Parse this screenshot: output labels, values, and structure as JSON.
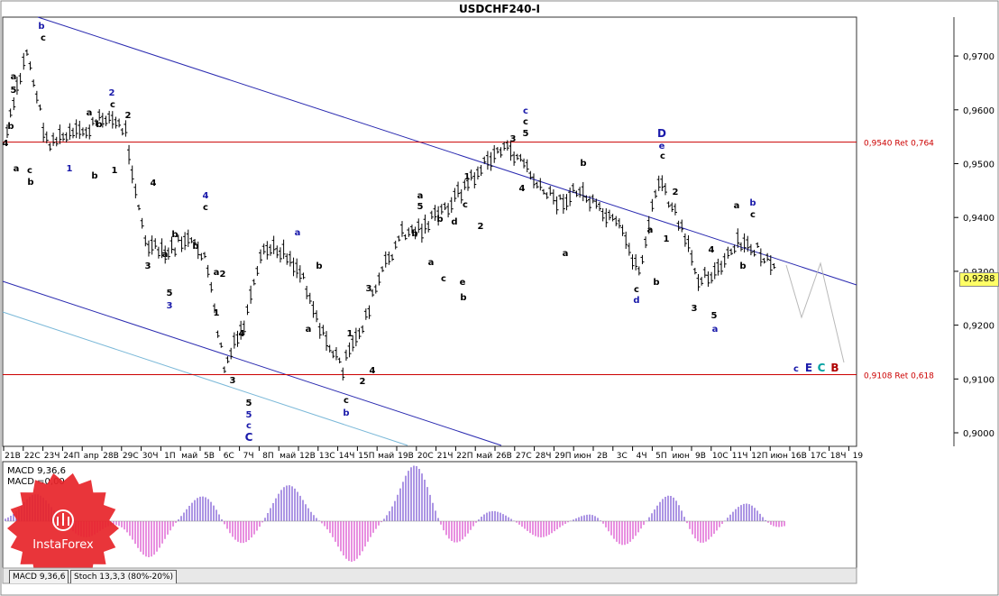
{
  "window": {
    "title": "USDCHF240-I"
  },
  "price_axis": {
    "ticks": [
      "0,9700",
      "0,9600",
      "0,9500",
      "0,9400",
      "0,9300",
      "0,9200",
      "0,9100",
      "0,9000"
    ],
    "current_price": "0,9288"
  },
  "levels": [
    {
      "label": "0,9540 Ret 0,764",
      "price": 0.954,
      "color": "#cc0000"
    },
    {
      "label": "0,9108 Ret 0,618",
      "price": 0.9108,
      "color": "#cc0000"
    }
  ],
  "time_axis": {
    "labels": [
      "21В",
      "22С",
      "23Ч",
      "24П",
      "апр",
      "28В",
      "29С",
      "30Ч",
      "1П",
      "май",
      "5В",
      "6С",
      "7Ч",
      "8П",
      "май",
      "12В",
      "13С",
      "14Ч",
      "15П",
      "май",
      "19В",
      "20С",
      "21Ч",
      "22П",
      "май",
      "26В",
      "27С",
      "28Ч",
      "29П",
      "июн",
      "2В",
      "3С",
      "4Ч",
      "5П",
      "июн",
      "9В",
      "10С",
      "11Ч",
      "12П",
      "июн",
      "16В",
      "17С",
      "18Ч",
      "19"
    ]
  },
  "wave_labels": [
    {
      "t": "b",
      "c": "#1a1aaa",
      "x": 46,
      "y": 32
    },
    {
      "t": "c",
      "c": "#000",
      "x": 48,
      "y": 45
    },
    {
      "t": "a",
      "c": "#000",
      "x": 15,
      "y": 88
    },
    {
      "t": "5",
      "c": "#000",
      "x": 15,
      "y": 103
    },
    {
      "t": "b",
      "c": "#000",
      "x": 12,
      "y": 143
    },
    {
      "t": "4",
      "c": "#000",
      "x": 6,
      "y": 162
    },
    {
      "t": "a",
      "c": "#000",
      "x": 18,
      "y": 190
    },
    {
      "t": "c",
      "c": "#000",
      "x": 33,
      "y": 192
    },
    {
      "t": "b",
      "c": "#000",
      "x": 34,
      "y": 205
    },
    {
      "t": "1",
      "c": "#1a1aaa",
      "x": 77,
      "y": 190
    },
    {
      "t": "b",
      "c": "#000",
      "x": 105,
      "y": 198
    },
    {
      "t": "1",
      "c": "#000",
      "x": 127,
      "y": 192
    },
    {
      "t": "2",
      "c": "#1a1aaa",
      "x": 124,
      "y": 106
    },
    {
      "t": "c",
      "c": "#000",
      "x": 125,
      "y": 119
    },
    {
      "t": "a",
      "c": "#000",
      "x": 99,
      "y": 128
    },
    {
      "t": "b",
      "c": "#000",
      "x": 110,
      "y": 141
    },
    {
      "t": "2",
      "c": "#000",
      "x": 142,
      "y": 131
    },
    {
      "t": "4",
      "c": "#000",
      "x": 170,
      "y": 206
    },
    {
      "t": "b",
      "c": "#000",
      "x": 194,
      "y": 263
    },
    {
      "t": "a",
      "c": "#000",
      "x": 183,
      "y": 285
    },
    {
      "t": "3",
      "c": "#000",
      "x": 164,
      "y": 298
    },
    {
      "t": "b",
      "c": "#000",
      "x": 217,
      "y": 276
    },
    {
      "t": "5",
      "c": "#000",
      "x": 188,
      "y": 328
    },
    {
      "t": "3",
      "c": "#1a1aaa",
      "x": 188,
      "y": 342
    },
    {
      "t": "4",
      "c": "#1a1aaa",
      "x": 228,
      "y": 220
    },
    {
      "t": "c",
      "c": "#000",
      "x": 228,
      "y": 233
    },
    {
      "t": "a",
      "c": "#000",
      "x": 240,
      "y": 305
    },
    {
      "t": "2",
      "c": "#000",
      "x": 247,
      "y": 307
    },
    {
      "t": "1",
      "c": "#000",
      "x": 240,
      "y": 350
    },
    {
      "t": "4",
      "c": "#000",
      "x": 268,
      "y": 373
    },
    {
      "t": "3",
      "c": "#000",
      "x": 258,
      "y": 425
    },
    {
      "t": "5",
      "c": "#000",
      "x": 276,
      "y": 450
    },
    {
      "t": "5",
      "c": "#1a1aaa",
      "x": 276,
      "y": 463
    },
    {
      "t": "c",
      "c": "#1a1aaa",
      "x": 276,
      "y": 475
    },
    {
      "t": "C",
      "c": "#1a1aaa",
      "x": 276,
      "y": 489
    },
    {
      "t": "a",
      "c": "#1a1aaa",
      "x": 330,
      "y": 261
    },
    {
      "t": "b",
      "c": "#000",
      "x": 354,
      "y": 298
    },
    {
      "t": "a",
      "c": "#000",
      "x": 342,
      "y": 368
    },
    {
      "t": "1",
      "c": "#000",
      "x": 388,
      "y": 373
    },
    {
      "t": "c",
      "c": "#000",
      "x": 384,
      "y": 447
    },
    {
      "t": "b",
      "c": "#1a1aaa",
      "x": 384,
      "y": 461
    },
    {
      "t": "2",
      "c": "#000",
      "x": 402,
      "y": 426
    },
    {
      "t": "4",
      "c": "#000",
      "x": 413,
      "y": 414
    },
    {
      "t": "3",
      "c": "#000",
      "x": 409,
      "y": 323
    },
    {
      "t": "a",
      "c": "#000",
      "x": 466,
      "y": 220
    },
    {
      "t": "5",
      "c": "#000",
      "x": 466,
      "y": 232
    },
    {
      "t": "b",
      "c": "#000",
      "x": 460,
      "y": 262
    },
    {
      "t": "a",
      "c": "#000",
      "x": 478,
      "y": 294
    },
    {
      "t": "c",
      "c": "#000",
      "x": 492,
      "y": 312
    },
    {
      "t": "b",
      "c": "#000",
      "x": 488,
      "y": 246
    },
    {
      "t": "d",
      "c": "#000",
      "x": 504,
      "y": 249
    },
    {
      "t": "c",
      "c": "#000",
      "x": 516,
      "y": 230
    },
    {
      "t": "1",
      "c": "#000",
      "x": 518,
      "y": 199
    },
    {
      "t": "2",
      "c": "#000",
      "x": 533,
      "y": 254
    },
    {
      "t": "e",
      "c": "#000",
      "x": 513,
      "y": 316
    },
    {
      "t": "b",
      "c": "#000",
      "x": 514,
      "y": 333
    },
    {
      "t": "c",
      "c": "#1a1aaa",
      "x": 583,
      "y": 126
    },
    {
      "t": "c",
      "c": "#000",
      "x": 583,
      "y": 138
    },
    {
      "t": "5",
      "c": "#000",
      "x": 583,
      "y": 151
    },
    {
      "t": "3",
      "c": "#000",
      "x": 569,
      "y": 157
    },
    {
      "t": "4",
      "c": "#000",
      "x": 579,
      "y": 212
    },
    {
      "t": "b",
      "c": "#000",
      "x": 647,
      "y": 184
    },
    {
      "t": "a",
      "c": "#000",
      "x": 627,
      "y": 284
    },
    {
      "t": "D",
      "c": "#1a1aaa",
      "x": 734,
      "y": 152
    },
    {
      "t": "e",
      "c": "#1a1aaa",
      "x": 734,
      "y": 165
    },
    {
      "t": "c",
      "c": "#000",
      "x": 735,
      "y": 176
    },
    {
      "t": "2",
      "c": "#000",
      "x": 749,
      "y": 216
    },
    {
      "t": "a",
      "c": "#000",
      "x": 721,
      "y": 258
    },
    {
      "t": "1",
      "c": "#000",
      "x": 739,
      "y": 268
    },
    {
      "t": "c",
      "c": "#000",
      "x": 706,
      "y": 324
    },
    {
      "t": "d",
      "c": "#1a1aaa",
      "x": 706,
      "y": 336
    },
    {
      "t": "b",
      "c": "#000",
      "x": 728,
      "y": 316
    },
    {
      "t": "a",
      "c": "#000",
      "x": 817,
      "y": 231
    },
    {
      "t": "b",
      "c": "#1a1aaa",
      "x": 835,
      "y": 228
    },
    {
      "t": "c",
      "c": "#000",
      "x": 835,
      "y": 241
    },
    {
      "t": "4",
      "c": "#000",
      "x": 789,
      "y": 280
    },
    {
      "t": "b",
      "c": "#000",
      "x": 824,
      "y": 298
    },
    {
      "t": "3",
      "c": "#000",
      "x": 770,
      "y": 345
    },
    {
      "t": "5",
      "c": "#000",
      "x": 792,
      "y": 353
    },
    {
      "t": "a",
      "c": "#1a1aaa",
      "x": 793,
      "y": 368
    },
    {
      "t": "c",
      "c": "#1a1aaa",
      "x": 883,
      "y": 412
    },
    {
      "t": "E",
      "c": "#1a1aaa",
      "x": 897,
      "y": 412
    },
    {
      "t": "C",
      "c": "#00a0a0",
      "x": 911,
      "y": 412
    },
    {
      "t": "B",
      "c": "#b00000",
      "x": 926,
      "y": 412
    }
  ],
  "indicator": {
    "title_line1": "MACD 9,36,6",
    "title_line2": "MACD =0,00"
  },
  "tabs": [
    "MACD 9,36,6",
    "Stoch 13,3,3 (80%-20%)"
  ],
  "watermark": {
    "brand": "InstaForex"
  },
  "colors": {
    "level_line": "#cc0000",
    "channel": "#2a2ab0",
    "channel_light": "#7ab8d8",
    "macd_pos": "#5a2bc8",
    "macd_neg": "#d020c0",
    "forecast": "#b8b8b8"
  },
  "chart_data": {
    "type": "line",
    "title": "USDCHF240-I",
    "ylim": [
      0.8985,
      0.978
    ],
    "x": [
      "21В",
      "22С",
      "23Ч",
      "24П",
      "апр",
      "28В",
      "29С",
      "30Ч",
      "1П",
      "май",
      "5В",
      "6С",
      "7Ч",
      "8П",
      "май",
      "12В",
      "13С",
      "14Ч",
      "15П",
      "май",
      "19В",
      "20С",
      "21Ч",
      "22П",
      "май",
      "26В",
      "27С",
      "28Ч",
      "29П",
      "июн",
      "2В",
      "3С",
      "4Ч",
      "5П",
      "июн",
      "9В",
      "10С",
      "11Ч",
      "12П",
      "июн"
    ],
    "series": [
      {
        "values": [
          0.956,
          0.971,
          0.954,
          0.955,
          0.956,
          0.959,
          0.956,
          0.935,
          0.933,
          0.936,
          0.933,
          0.912,
          0.92,
          0.934,
          0.934,
          0.929,
          0.918,
          0.912,
          0.92,
          0.93,
          0.937,
          0.938,
          0.941,
          0.945,
          0.949,
          0.953,
          0.951,
          0.945,
          0.943,
          0.945,
          0.941,
          0.938,
          0.93,
          0.947,
          0.939,
          0.929,
          0.93,
          0.935,
          0.934,
          0.929
        ]
      }
    ]
  }
}
